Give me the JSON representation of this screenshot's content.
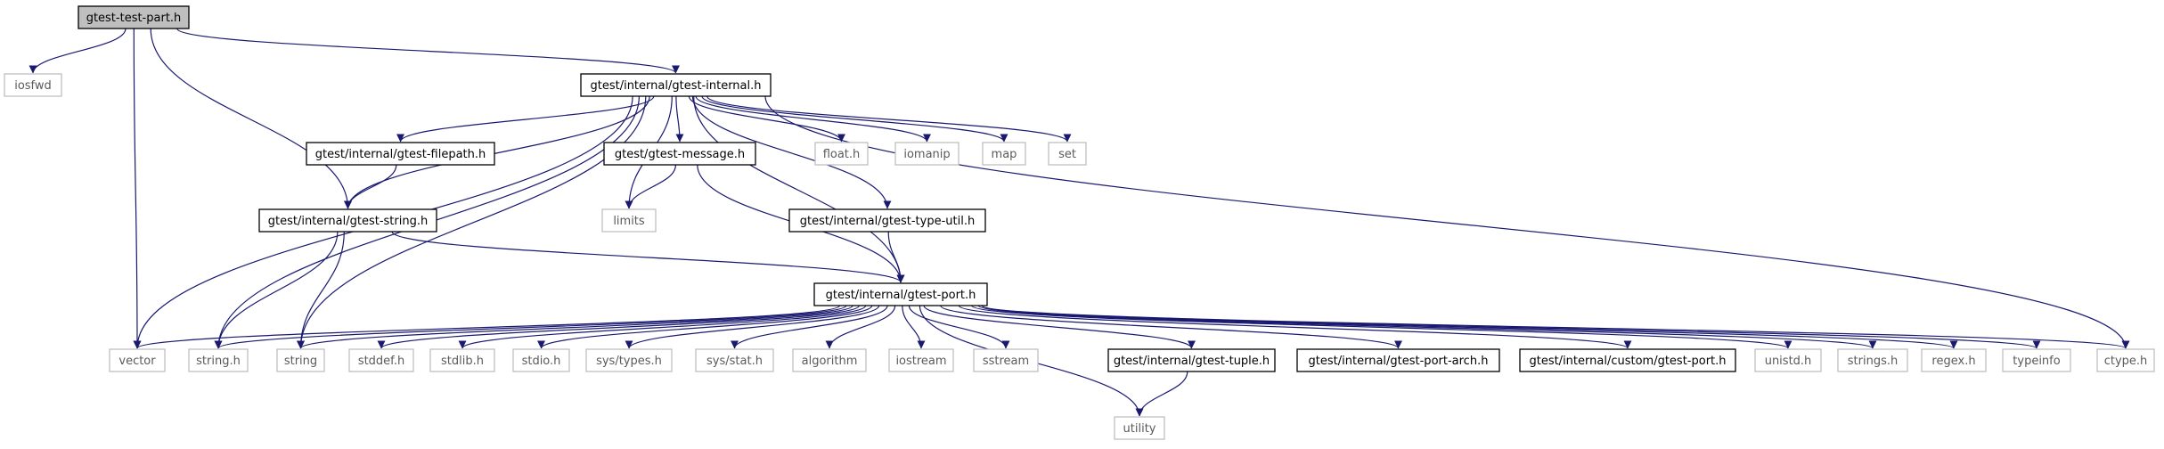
{
  "colors": {
    "edge": "#191970",
    "root_fill": "#bfbfbf",
    "internal_border": "#000000",
    "external_border": "#bfbfbf"
  },
  "nodes": [
    {
      "id": "root",
      "label": "gtest-test-part.h",
      "kind": "root"
    },
    {
      "id": "iosfwd",
      "label": "iosfwd",
      "kind": "external"
    },
    {
      "id": "internal",
      "label": "gtest/internal/gtest-internal.h",
      "kind": "internal"
    },
    {
      "id": "filepath",
      "label": "gtest/internal/gtest-filepath.h",
      "kind": "internal"
    },
    {
      "id": "message",
      "label": "gtest/gtest-message.h",
      "kind": "internal"
    },
    {
      "id": "floath",
      "label": "float.h",
      "kind": "external"
    },
    {
      "id": "iomanip",
      "label": "iomanip",
      "kind": "external"
    },
    {
      "id": "map",
      "label": "map",
      "kind": "external"
    },
    {
      "id": "set",
      "label": "set",
      "kind": "external"
    },
    {
      "id": "gstring",
      "label": "gtest/internal/gtest-string.h",
      "kind": "internal"
    },
    {
      "id": "limits",
      "label": "limits",
      "kind": "external"
    },
    {
      "id": "typeutil",
      "label": "gtest/internal/gtest-type-util.h",
      "kind": "internal"
    },
    {
      "id": "port",
      "label": "gtest/internal/gtest-port.h",
      "kind": "internal"
    },
    {
      "id": "vector",
      "label": "vector",
      "kind": "external"
    },
    {
      "id": "stringh",
      "label": "string.h",
      "kind": "external"
    },
    {
      "id": "string",
      "label": "string",
      "kind": "external"
    },
    {
      "id": "stddef",
      "label": "stddef.h",
      "kind": "external"
    },
    {
      "id": "stdlib",
      "label": "stdlib.h",
      "kind": "external"
    },
    {
      "id": "stdio",
      "label": "stdio.h",
      "kind": "external"
    },
    {
      "id": "systypes",
      "label": "sys/types.h",
      "kind": "external"
    },
    {
      "id": "sysstat",
      "label": "sys/stat.h",
      "kind": "external"
    },
    {
      "id": "algorithm",
      "label": "algorithm",
      "kind": "external"
    },
    {
      "id": "iostream",
      "label": "iostream",
      "kind": "external"
    },
    {
      "id": "sstream",
      "label": "sstream",
      "kind": "external"
    },
    {
      "id": "tuple",
      "label": "gtest/internal/gtest-tuple.h",
      "kind": "internal"
    },
    {
      "id": "portarch",
      "label": "gtest/internal/gtest-port-arch.h",
      "kind": "internal"
    },
    {
      "id": "custport",
      "label": "gtest/internal/custom/gtest-port.h",
      "kind": "internal"
    },
    {
      "id": "unistd",
      "label": "unistd.h",
      "kind": "external"
    },
    {
      "id": "strings",
      "label": "strings.h",
      "kind": "external"
    },
    {
      "id": "regex",
      "label": "regex.h",
      "kind": "external"
    },
    {
      "id": "typeinfo",
      "label": "typeinfo",
      "kind": "external"
    },
    {
      "id": "ctype",
      "label": "ctype.h",
      "kind": "external"
    },
    {
      "id": "utility",
      "label": "utility",
      "kind": "external"
    }
  ],
  "edges": [
    [
      "root",
      "iosfwd"
    ],
    [
      "root",
      "internal"
    ],
    [
      "root",
      "gstring"
    ],
    [
      "root",
      "vector"
    ],
    [
      "internal",
      "filepath"
    ],
    [
      "internal",
      "message"
    ],
    [
      "internal",
      "floath"
    ],
    [
      "internal",
      "iomanip"
    ],
    [
      "internal",
      "map"
    ],
    [
      "internal",
      "set"
    ],
    [
      "internal",
      "gstring"
    ],
    [
      "internal",
      "limits"
    ],
    [
      "internal",
      "typeutil"
    ],
    [
      "internal",
      "port"
    ],
    [
      "internal",
      "vector"
    ],
    [
      "internal",
      "stringh"
    ],
    [
      "internal",
      "string"
    ],
    [
      "internal",
      "ctype"
    ],
    [
      "filepath",
      "gstring"
    ],
    [
      "message",
      "limits"
    ],
    [
      "message",
      "port"
    ],
    [
      "typeutil",
      "port"
    ],
    [
      "gstring",
      "port"
    ],
    [
      "gstring",
      "stringh"
    ],
    [
      "gstring",
      "string"
    ],
    [
      "port",
      "vector"
    ],
    [
      "port",
      "stringh"
    ],
    [
      "port",
      "string"
    ],
    [
      "port",
      "stddef"
    ],
    [
      "port",
      "stdlib"
    ],
    [
      "port",
      "stdio"
    ],
    [
      "port",
      "systypes"
    ],
    [
      "port",
      "sysstat"
    ],
    [
      "port",
      "algorithm"
    ],
    [
      "port",
      "iostream"
    ],
    [
      "port",
      "sstream"
    ],
    [
      "port",
      "utility"
    ],
    [
      "port",
      "tuple"
    ],
    [
      "port",
      "portarch"
    ],
    [
      "port",
      "custport"
    ],
    [
      "port",
      "unistd"
    ],
    [
      "port",
      "strings"
    ],
    [
      "port",
      "regex"
    ],
    [
      "port",
      "typeinfo"
    ],
    [
      "port",
      "ctype"
    ],
    [
      "tuple",
      "utility"
    ]
  ]
}
